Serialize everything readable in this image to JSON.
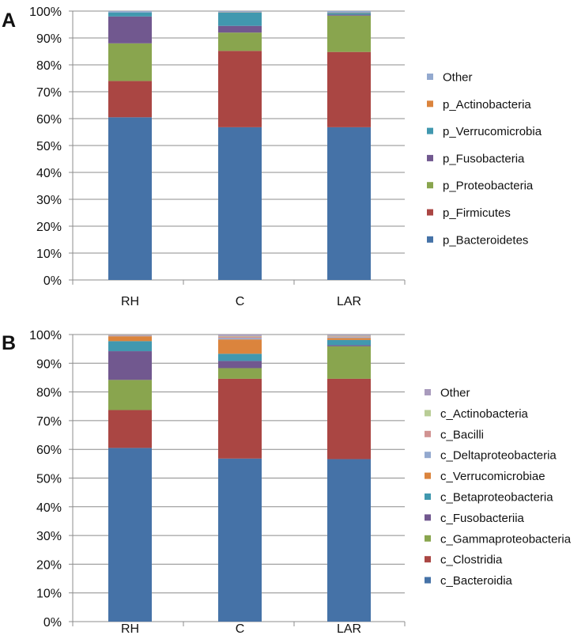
{
  "chart_data": [
    {
      "panel": "A",
      "type": "bar",
      "stacked": true,
      "percent": true,
      "categories": [
        "RH",
        "C",
        "LAR"
      ],
      "ylim": [
        0,
        100
      ],
      "yticks": [
        "0%",
        "10%",
        "20%",
        "30%",
        "40%",
        "50%",
        "60%",
        "70%",
        "80%",
        "90%",
        "100%"
      ],
      "legend_position": "right",
      "series": [
        {
          "name": "p_Bacteroidetes",
          "color": "#4572A7",
          "values": [
            60.5,
            56.8,
            56.8
          ]
        },
        {
          "name": "p_Firmicutes",
          "color": "#AA4643",
          "values": [
            13.5,
            28.4,
            28.0
          ]
        },
        {
          "name": "p_Proteobacteria",
          "color": "#89A54E",
          "values": [
            14.0,
            6.8,
            13.5
          ]
        },
        {
          "name": "p_Fusobacteria",
          "color": "#71588F",
          "values": [
            10.0,
            2.5,
            0.4
          ]
        },
        {
          "name": "p_Verrucomicrobia",
          "color": "#4198AF",
          "values": [
            1.5,
            5.0,
            0.6
          ]
        },
        {
          "name": "p_Actinobacteria",
          "color": "#DB843D",
          "values": [
            0.0,
            0.1,
            0.1
          ]
        },
        {
          "name": "Other",
          "color": "#93A9CF",
          "values": [
            0.5,
            0.4,
            0.6
          ]
        }
      ]
    },
    {
      "panel": "B",
      "type": "bar",
      "stacked": true,
      "percent": true,
      "categories": [
        "RH",
        "C",
        "LAR"
      ],
      "ylim": [
        0,
        100
      ],
      "yticks": [
        "0%",
        "10%",
        "20%",
        "30%",
        "40%",
        "50%",
        "60%",
        "70%",
        "80%",
        "90%",
        "100%"
      ],
      "legend_position": "right",
      "series": [
        {
          "name": "c_Bacteroidia",
          "color": "#4572A7",
          "values": [
            60.5,
            56.8,
            56.6
          ]
        },
        {
          "name": "c_Clostridia",
          "color": "#AA4643",
          "values": [
            13.2,
            27.8,
            28.0
          ]
        },
        {
          "name": "c_Gammaproteobacteria",
          "color": "#89A54E",
          "values": [
            10.5,
            3.7,
            11.3
          ]
        },
        {
          "name": "c_Fusobacteriia",
          "color": "#71588F",
          "values": [
            10.0,
            2.5,
            0.4
          ]
        },
        {
          "name": "c_Betaproteobacteria",
          "color": "#4198AF",
          "values": [
            3.5,
            2.5,
            1.8
          ]
        },
        {
          "name": "c_Verrucomicrobiae",
          "color": "#DB843D",
          "values": [
            1.7,
            5.0,
            0.7
          ]
        },
        {
          "name": "c_Deltaproteobacteria",
          "color": "#93A9CF",
          "values": [
            0.2,
            0.5,
            0.3
          ]
        },
        {
          "name": "c_Bacilli",
          "color": "#D19392",
          "values": [
            0.2,
            0.5,
            0.3
          ]
        },
        {
          "name": "c_Actinobacteria",
          "color": "#B9CD96",
          "values": [
            0.1,
            0.2,
            0.2
          ]
        },
        {
          "name": "Other",
          "color": "#A99BBD",
          "values": [
            0.1,
            0.5,
            0.4
          ]
        }
      ]
    }
  ]
}
